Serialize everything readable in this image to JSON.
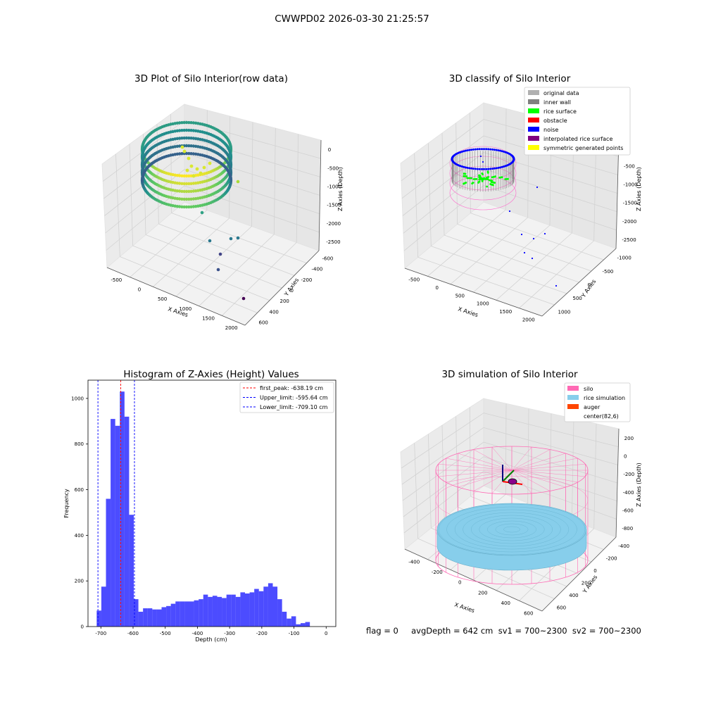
{
  "suptitle": "CWWPD02 2026-03-30 21:25:57",
  "chart_data": [
    {
      "type": "scatter",
      "projection": "3d",
      "title": "3D Plot of Silo Interior(row data)",
      "xlabel": "X Axies",
      "ylabel": "Y Axies",
      "zlabel": "Z Axies (Depth)",
      "xticks": [
        "-500",
        "0",
        "500",
        "1000",
        "1500",
        "2000"
      ],
      "yticks": [
        "-600",
        "-400",
        "-200",
        "0",
        "200",
        "400",
        "600"
      ],
      "zticks": [
        "0",
        "-500",
        "-1000",
        "-1500",
        "-2000",
        "-2500"
      ],
      "colormap": "viridis",
      "description_points": {
        "ring_center": [
          80,
          0
        ],
        "ring_radius": 700,
        "ring_depth_range": [
          -300,
          -800
        ],
        "outliers": [
          {
            "x": 1300,
            "y": 0,
            "z": -1100
          },
          {
            "x": 900,
            "y": 0,
            "z": -1600
          },
          {
            "x": 1100,
            "y": -100,
            "z": -2000
          },
          {
            "x": 1400,
            "y": -100,
            "z": -2000
          },
          {
            "x": 1600,
            "y": -100,
            "z": -2000
          },
          {
            "x": 1200,
            "y": -250,
            "z": -2300
          },
          {
            "x": 1300,
            "y": -350,
            "z": -2550
          },
          {
            "x": 1800,
            "y": -600,
            "z": -2700
          }
        ]
      }
    },
    {
      "type": "scatter",
      "projection": "3d",
      "title": "3D classify of Silo Interior",
      "xlabel": "X Axies",
      "ylabel": "Y Axies",
      "zlabel": "Z Axies (Depth)",
      "xticks": [
        "-500",
        "0",
        "500",
        "1000",
        "1500",
        "2000"
      ],
      "yticks": [
        "-1000",
        "-500",
        "0",
        "500",
        "1000"
      ],
      "zticks": [
        "0",
        "-500",
        "-1000",
        "-1500",
        "-2000",
        "-2500"
      ],
      "legend": [
        {
          "label": "original data",
          "color": "#b0b0b0"
        },
        {
          "label": "inner wall",
          "color": "#808080"
        },
        {
          "label": "rice surface",
          "color": "#00ff00"
        },
        {
          "label": "obstacle",
          "color": "#ff0000"
        },
        {
          "label": "noise",
          "color": "#0000ff"
        },
        {
          "label": "interpolated rice surface",
          "color": "#800080"
        },
        {
          "label": "symmetric generated points",
          "color": "#ffff00"
        }
      ],
      "legend_loc": "upper right"
    },
    {
      "type": "bar",
      "title": "Histogram of Z-Axies (Height) Values",
      "xlabel": "Depth (cm)",
      "ylabel": "Frequency",
      "xlim": [
        -740,
        30
      ],
      "ylim": [
        0,
        1080
      ],
      "xticks": [
        -700,
        -600,
        -500,
        -400,
        -300,
        -200,
        -100,
        0
      ],
      "yticks": [
        0,
        200,
        400,
        600,
        800,
        1000
      ],
      "bar_color": "#0000ff",
      "bar_alpha": 0.7,
      "bin_start": -713,
      "bin_width": 14.4,
      "values": [
        70,
        175,
        560,
        910,
        880,
        1030,
        920,
        490,
        120,
        65,
        80,
        80,
        75,
        75,
        85,
        90,
        100,
        110,
        110,
        110,
        110,
        115,
        120,
        140,
        130,
        135,
        130,
        125,
        140,
        140,
        130,
        150,
        145,
        150,
        165,
        155,
        175,
        190,
        175,
        120,
        65,
        35,
        45,
        10,
        15,
        20
      ],
      "lines": [
        {
          "label": "first_peak: -638.19 cm",
          "x": -638.19,
          "color": "#ff0000"
        },
        {
          "label": "Upper_limit: -595.64 cm",
          "x": -595.64,
          "color": "#0000ff"
        },
        {
          "label": "Lower_limit: -709.10 cm",
          "x": -709.1,
          "color": "#0000ff"
        }
      ],
      "legend_loc": "upper right"
    },
    {
      "type": "scatter",
      "projection": "3d",
      "title": "3D simulation of Silo Interior",
      "xlabel": "X Axies",
      "ylabel": "Y Axies",
      "zlabel": "Z Axies (Depth)",
      "xticks": [
        "-400",
        "-200",
        "0",
        "200",
        "400",
        "600"
      ],
      "yticks": [
        "-400",
        "-200",
        "0",
        "200",
        "400",
        "600"
      ],
      "zticks": [
        "200",
        "0",
        "-200",
        "-400",
        "-600",
        "-800"
      ],
      "legend": [
        {
          "label": "silo",
          "color": "#ff69b4"
        },
        {
          "label": "rice simulation",
          "color": "#87ceeb"
        },
        {
          "label": "auger",
          "color": "#ff4500"
        },
        {
          "label": "center(82,6)",
          "color": ""
        }
      ],
      "legend_loc": "upper right"
    }
  ],
  "footer": {
    "text": "flag = 0     avgDepth = 642 cm  sv1 = 700~2300  sv2 = 700~2300"
  }
}
